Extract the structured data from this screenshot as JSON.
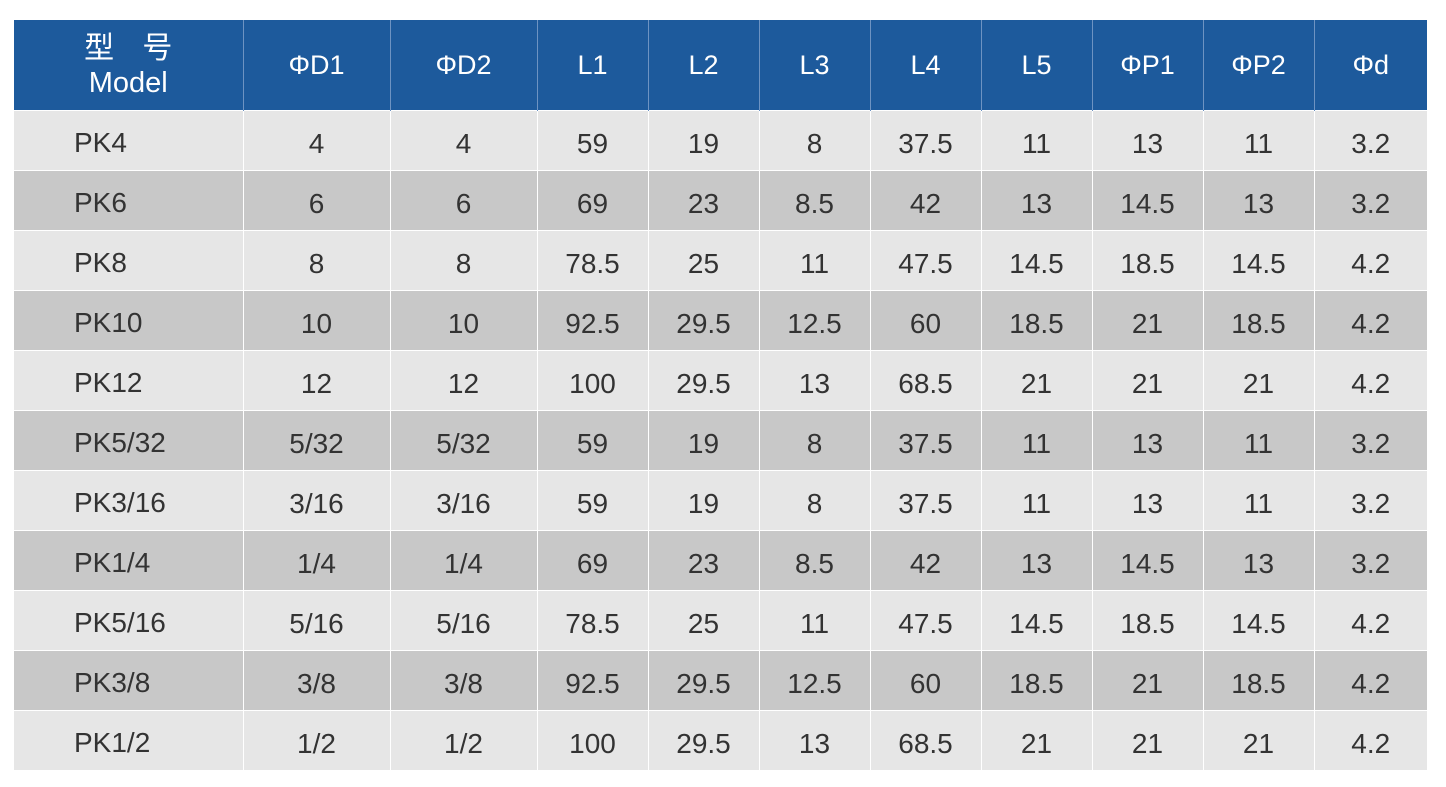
{
  "header": {
    "model_cn": "型 号",
    "model_en": "Model",
    "columns": [
      "ΦD1",
      "ΦD2",
      "L1",
      "L2",
      "L3",
      "L4",
      "L5",
      "ΦP1",
      "ΦP2",
      "Φd"
    ]
  },
  "rows": [
    [
      "PK4",
      "4",
      "4",
      "59",
      "19",
      "8",
      "37.5",
      "11",
      "13",
      "11",
      "3.2"
    ],
    [
      "PK6",
      "6",
      "6",
      "69",
      "23",
      "8.5",
      "42",
      "13",
      "14.5",
      "13",
      "3.2"
    ],
    [
      "PK8",
      "8",
      "8",
      "78.5",
      "25",
      "11",
      "47.5",
      "14.5",
      "18.5",
      "14.5",
      "4.2"
    ],
    [
      "PK10",
      "10",
      "10",
      "92.5",
      "29.5",
      "12.5",
      "60",
      "18.5",
      "21",
      "18.5",
      "4.2"
    ],
    [
      "PK12",
      "12",
      "12",
      "100",
      "29.5",
      "13",
      "68.5",
      "21",
      "21",
      "21",
      "4.2"
    ],
    [
      "PK5/32",
      "5/32",
      "5/32",
      "59",
      "19",
      "8",
      "37.5",
      "11",
      "13",
      "11",
      "3.2"
    ],
    [
      "PK3/16",
      "3/16",
      "3/16",
      "59",
      "19",
      "8",
      "37.5",
      "11",
      "13",
      "11",
      "3.2"
    ],
    [
      "PK1/4",
      "1/4",
      "1/4",
      "69",
      "23",
      "8.5",
      "42",
      "13",
      "14.5",
      "13",
      "3.2"
    ],
    [
      "PK5/16",
      "5/16",
      "5/16",
      "78.5",
      "25",
      "11",
      "47.5",
      "14.5",
      "18.5",
      "14.5",
      "4.2"
    ],
    [
      "PK3/8",
      "3/8",
      "3/8",
      "92.5",
      "29.5",
      "12.5",
      "60",
      "18.5",
      "21",
      "18.5",
      "4.2"
    ],
    [
      "PK1/2",
      "1/2",
      "1/2",
      "100",
      "29.5",
      "13",
      "68.5",
      "21",
      "21",
      "21",
      "4.2"
    ]
  ],
  "colors": {
    "header_bg": "#1d5a9c",
    "row_light": "#e6e6e6",
    "row_dark": "#c8c8c8"
  }
}
